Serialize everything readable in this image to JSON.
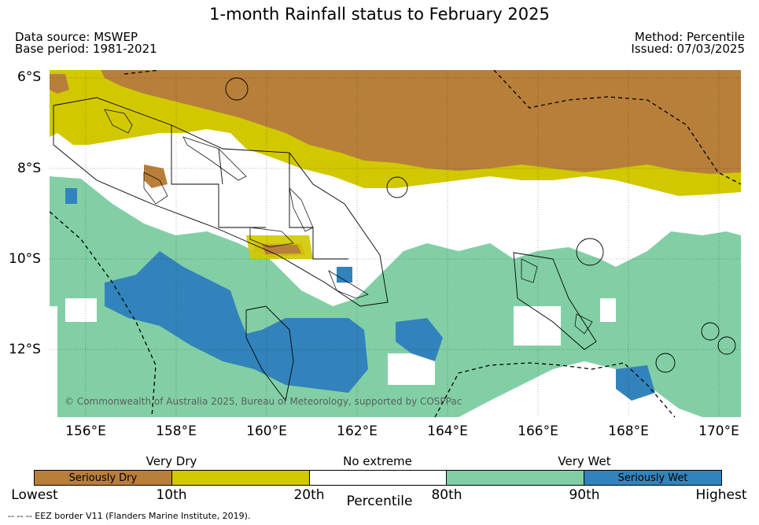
{
  "title": "1-month Rainfall status to February 2025",
  "meta": {
    "data_source": "Data source: MSWEP",
    "base_period": "Base period: 1981-2021",
    "method": "Method: Percentile",
    "issued": "Issued: 07/03/2025"
  },
  "map": {
    "lat_labels": [
      "6°S",
      "8°S",
      "10°S",
      "12°S"
    ],
    "lon_labels": [
      "156°E",
      "158°E",
      "160°E",
      "162°E",
      "164°E",
      "166°E",
      "168°E",
      "170°E"
    ],
    "credit": "© Commonwealth of Australia 2025, Bureau of Meteorology, supported by COSPPac"
  },
  "legend": {
    "categories": [
      "Very Dry",
      "No extreme",
      "Very Wet"
    ],
    "segments": [
      {
        "label": "Seriously Dry",
        "color": "#b87f3a"
      },
      {
        "label": "",
        "color": "#d2c800"
      },
      {
        "label": "",
        "color": "#ffffff"
      },
      {
        "label": "",
        "color": "#82cfa5"
      },
      {
        "label": "Seriously Wet",
        "color": "#3283bc"
      }
    ],
    "ticks": [
      "Lowest",
      "10th",
      "20th",
      "80th",
      "90th",
      "Highest"
    ],
    "xlabel": "Percentile"
  },
  "eez_note": "--  --  -- EEZ border V11 (Flanders Marine Institute, 2019)."
}
